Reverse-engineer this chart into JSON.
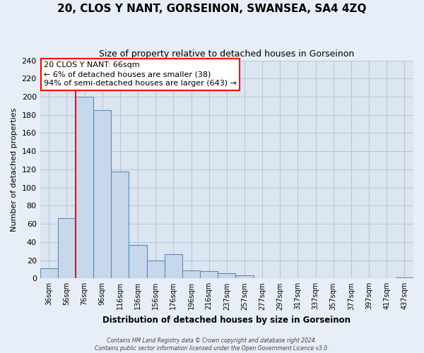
{
  "title": "20, CLOS Y NANT, GORSEINON, SWANSEA, SA4 4ZQ",
  "subtitle": "Size of property relative to detached houses in Gorseinon",
  "xlabel": "Distribution of detached houses by size in Gorseinon",
  "ylabel": "Number of detached properties",
  "bar_labels": [
    "36sqm",
    "56sqm",
    "76sqm",
    "96sqm",
    "116sqm",
    "136sqm",
    "156sqm",
    "176sqm",
    "196sqm",
    "216sqm",
    "237sqm",
    "257sqm",
    "277sqm",
    "297sqm",
    "317sqm",
    "337sqm",
    "357sqm",
    "377sqm",
    "397sqm",
    "417sqm",
    "437sqm"
  ],
  "bar_values": [
    11,
    66,
    200,
    185,
    118,
    37,
    20,
    27,
    9,
    8,
    6,
    3,
    0,
    0,
    0,
    0,
    0,
    0,
    0,
    0,
    1
  ],
  "bar_color": "#c8d8ec",
  "bar_edge_color": "#5b8db8",
  "ylim": [
    0,
    240
  ],
  "yticks": [
    0,
    20,
    40,
    60,
    80,
    100,
    120,
    140,
    160,
    180,
    200,
    220,
    240
  ],
  "property_label": "20 CLOS Y NANT: 66sqm",
  "annotation_line1": "← 6% of detached houses are smaller (38)",
  "annotation_line2": "94% of semi-detached houses are larger (643) →",
  "vline_x_index": 1.5,
  "footer_line1": "Contains HM Land Registry data © Crown copyright and database right 2024.",
  "footer_line2": "Contains public sector information licensed under the Open Government Licence v3.0.",
  "background_color": "#e8eef8",
  "plot_bg_color": "#dce6f0",
  "grid_color": "#b8c8d8"
}
